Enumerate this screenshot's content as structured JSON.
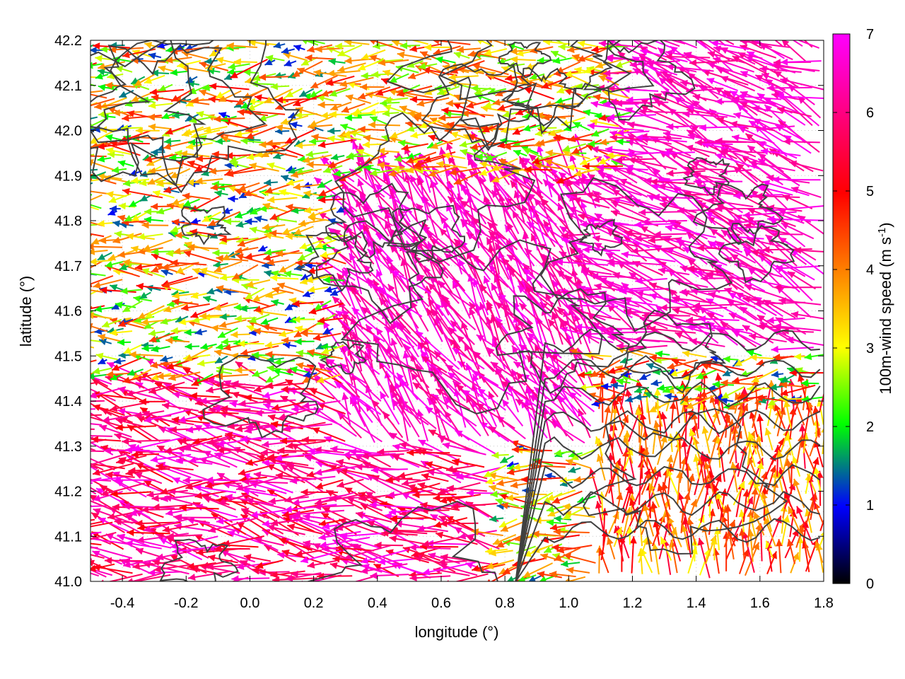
{
  "chart_data": {
    "type": "vector-field",
    "xlabel": "longitude (°)",
    "ylabel": "latitude (°)",
    "xlim": [
      -0.5,
      1.8
    ],
    "ylim": [
      41.0,
      42.2
    ],
    "x_ticks": [
      "-0.4",
      "-0.2",
      "0.0",
      "0.2",
      "0.4",
      "0.6",
      "0.8",
      "1.0",
      "1.2",
      "1.4",
      "1.6",
      "1.8"
    ],
    "y_ticks": [
      "41.0",
      "41.1",
      "41.2",
      "41.3",
      "41.4",
      "41.5",
      "41.6",
      "41.7",
      "41.8",
      "41.9",
      "42.0",
      "42.1",
      "42.2"
    ],
    "grid": "dotted",
    "colorbar": {
      "label_main": "100m-wind speed (m s",
      "label_sup": "-1",
      "label_close": ")",
      "range": [
        0,
        7
      ],
      "ticks": [
        "0",
        "1",
        "2",
        "3",
        "4",
        "5",
        "6",
        "7"
      ],
      "colors": [
        "#000000",
        "#0000ff",
        "#00ff00",
        "#ffff00",
        "#ff8000",
        "#ff0000",
        "#ff00ff"
      ]
    },
    "regimes": [
      {
        "region": "west",
        "lon": [
          -0.5,
          0.3
        ],
        "lat": [
          41.45,
          42.2
        ],
        "direction_deg": 185,
        "speed_range": [
          1,
          5
        ]
      },
      {
        "region": "southwest",
        "lon": [
          -0.5,
          0.8
        ],
        "lat": [
          41.0,
          41.45
        ],
        "direction_deg": 172,
        "speed_range": [
          5,
          7
        ]
      },
      {
        "region": "center",
        "lon": [
          0.3,
          1.1
        ],
        "lat": [
          41.3,
          41.9
        ],
        "direction_deg": 125,
        "speed_range": [
          6,
          7
        ]
      },
      {
        "region": "northeast",
        "lon": [
          1.1,
          1.8
        ],
        "lat": [
          41.5,
          42.2
        ],
        "direction_deg": 160,
        "speed_range": [
          6,
          7
        ]
      },
      {
        "region": "north",
        "lon": [
          0.3,
          1.2
        ],
        "lat": [
          41.9,
          42.2
        ],
        "direction_deg": 180,
        "speed_range": [
          2,
          5
        ]
      },
      {
        "region": "southeast",
        "lon": [
          1.1,
          1.8
        ],
        "lat": [
          41.0,
          41.4
        ],
        "direction_deg": 90,
        "speed_range": [
          3,
          5.5
        ]
      }
    ],
    "contour_color": "#404040",
    "vector_spacing_deg": 0.03
  }
}
